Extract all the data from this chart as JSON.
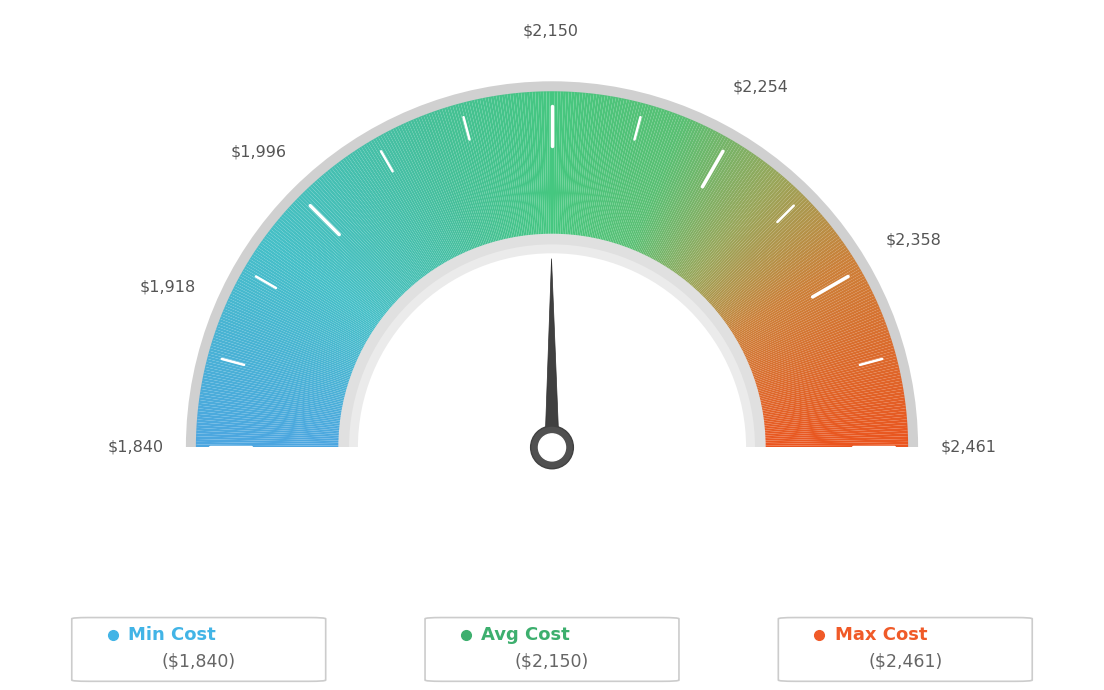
{
  "min_val": 1840,
  "max_val": 2461,
  "avg_val": 2150,
  "tick_labels": [
    "$1,840",
    "$1,918",
    "$1,996",
    "$2,150",
    "$2,254",
    "$2,358",
    "$2,461"
  ],
  "tick_values": [
    1840,
    1918,
    1996,
    2150,
    2254,
    2358,
    2461
  ],
  "legend_labels": [
    "Min Cost",
    "Avg Cost",
    "Max Cost"
  ],
  "legend_values": [
    "($1,840)",
    "($2,150)",
    "($2,461)"
  ],
  "legend_colors": [
    "#42b4e6",
    "#3daf6e",
    "#f05a28"
  ],
  "background_color": "#ffffff",
  "needle_color": "#454545",
  "color_stops": [
    [
      0.0,
      [
        0.3,
        0.65,
        0.88
      ]
    ],
    [
      0.2,
      [
        0.27,
        0.75,
        0.78
      ]
    ],
    [
      0.38,
      [
        0.27,
        0.75,
        0.6
      ]
    ],
    [
      0.5,
      [
        0.27,
        0.78,
        0.5
      ]
    ],
    [
      0.62,
      [
        0.35,
        0.75,
        0.45
      ]
    ],
    [
      0.72,
      [
        0.6,
        0.65,
        0.35
      ]
    ],
    [
      0.82,
      [
        0.8,
        0.5,
        0.22
      ]
    ],
    [
      1.0,
      [
        0.92,
        0.33,
        0.12
      ]
    ]
  ]
}
